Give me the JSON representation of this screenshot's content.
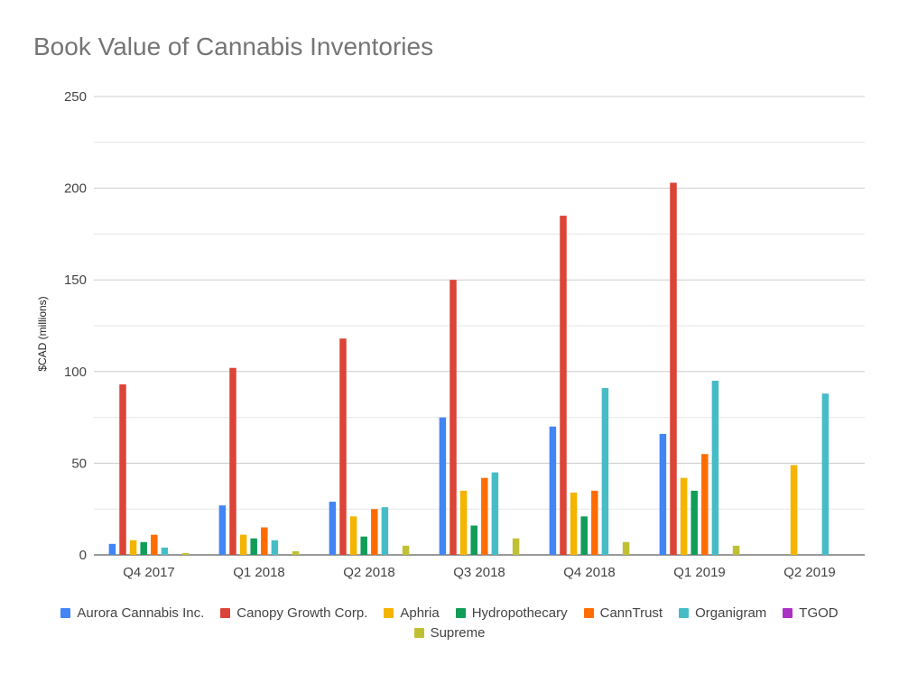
{
  "chart_data": {
    "type": "bar",
    "title": "Book Value of Cannabis Inventories",
    "xlabel": "",
    "ylabel": "$CAD (millions)",
    "ylim": [
      0,
      250
    ],
    "yticks": [
      0,
      50,
      100,
      150,
      200,
      250
    ],
    "grid": true,
    "legend_position": "bottom",
    "categories": [
      "Q4 2017",
      "Q1 2018",
      "Q2 2018",
      "Q3 2018",
      "Q4 2018",
      "Q1 2019",
      "Q2 2019"
    ],
    "series": [
      {
        "name": "Aurora Cannabis Inc.",
        "color": "#4285F4",
        "values": [
          6,
          27,
          29,
          75,
          70,
          66,
          null
        ]
      },
      {
        "name": "Canopy Growth Corp.",
        "color": "#DB4437",
        "values": [
          93,
          102,
          118,
          150,
          185,
          203,
          null
        ]
      },
      {
        "name": "Aphria",
        "color": "#F4B400",
        "values": [
          8,
          11,
          21,
          35,
          34,
          42,
          49
        ]
      },
      {
        "name": "Hydropothecary",
        "color": "#0F9D58",
        "values": [
          7,
          9,
          10,
          16,
          21,
          35,
          null
        ]
      },
      {
        "name": "CannTrust",
        "color": "#FF6D00",
        "values": [
          11,
          15,
          25,
          42,
          35,
          55,
          null
        ]
      },
      {
        "name": "Organigram",
        "color": "#46BDC6",
        "values": [
          4,
          8,
          26,
          45,
          91,
          95,
          88
        ]
      },
      {
        "name": "TGOD",
        "color": "#AB30C4",
        "values": [
          null,
          null,
          null,
          null,
          null,
          null,
          null
        ]
      },
      {
        "name": "Supreme",
        "color": "#C0C034",
        "values": [
          1,
          2,
          5,
          9,
          7,
          5,
          null
        ]
      }
    ]
  }
}
